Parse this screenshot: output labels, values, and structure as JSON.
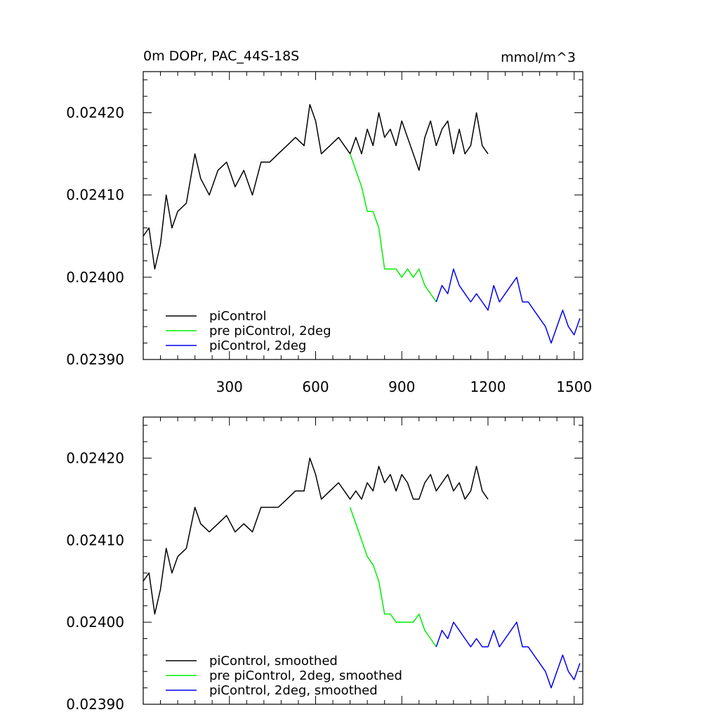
{
  "chart_data": [
    {
      "type": "line",
      "title": "0m DOPr, PAC_44S-18S",
      "units": "mmol/m^3",
      "xlim": [
        0,
        1530
      ],
      "ylim": [
        0.0239,
        0.02425
      ],
      "x_ticks": [
        300,
        600,
        900,
        1200,
        1500
      ],
      "y_ticks": [
        0.0239,
        0.024,
        0.0241,
        0.0242
      ],
      "y_tick_labels": [
        "0.02390",
        "0.02400",
        "0.02410",
        "0.02420"
      ],
      "legend": "bottom-left",
      "series": [
        {
          "name": "piControl",
          "color": "#000000",
          "x": [
            0,
            20,
            40,
            60,
            80,
            100,
            120,
            150,
            180,
            200,
            230,
            260,
            290,
            320,
            350,
            380,
            410,
            440,
            470,
            500,
            530,
            560,
            580,
            600,
            620,
            650,
            680,
            700,
            720,
            740,
            760,
            780,
            800,
            820,
            840,
            860,
            880,
            900,
            920,
            940,
            960,
            980,
            1000,
            1020,
            1040,
            1060,
            1080,
            1100,
            1120,
            1140,
            1160,
            1180,
            1200
          ],
          "y": [
            0.02405,
            0.02406,
            0.02401,
            0.02404,
            0.0241,
            0.02406,
            0.02408,
            0.02409,
            0.02415,
            0.02412,
            0.0241,
            0.02413,
            0.02414,
            0.02411,
            0.02413,
            0.0241,
            0.02414,
            0.02414,
            0.02415,
            0.02416,
            0.02417,
            0.02416,
            0.02421,
            0.02419,
            0.02415,
            0.02416,
            0.02417,
            0.02416,
            0.02415,
            0.02417,
            0.02415,
            0.02418,
            0.02416,
            0.0242,
            0.02417,
            0.02418,
            0.02416,
            0.02419,
            0.02417,
            0.02415,
            0.02413,
            0.02417,
            0.02419,
            0.02416,
            0.02418,
            0.02419,
            0.02415,
            0.02418,
            0.02415,
            0.02416,
            0.0242,
            0.02416,
            0.02415
          ]
        },
        {
          "name": "pre piControl, 2deg",
          "color": "#00ee00",
          "x": [
            720,
            740,
            760,
            780,
            800,
            820,
            840,
            860,
            880,
            900,
            920,
            940,
            960,
            980,
            1000,
            1020
          ],
          "y": [
            0.02415,
            0.02413,
            0.02411,
            0.02408,
            0.02408,
            0.02406,
            0.02401,
            0.02401,
            0.02401,
            0.024,
            0.02401,
            0.024,
            0.02401,
            0.02399,
            0.02398,
            0.02397
          ]
        },
        {
          "name": "piControl, 2deg",
          "color": "#0000ee",
          "x": [
            1020,
            1040,
            1060,
            1080,
            1100,
            1120,
            1140,
            1160,
            1180,
            1200,
            1220,
            1240,
            1260,
            1280,
            1300,
            1320,
            1340,
            1360,
            1380,
            1400,
            1420,
            1440,
            1460,
            1480,
            1500,
            1520
          ],
          "y": [
            0.02397,
            0.02399,
            0.02398,
            0.02401,
            0.02399,
            0.02398,
            0.02397,
            0.02398,
            0.02397,
            0.02396,
            0.02399,
            0.02397,
            0.02398,
            0.02399,
            0.024,
            0.02397,
            0.02397,
            0.02396,
            0.02395,
            0.02394,
            0.02392,
            0.02394,
            0.02396,
            0.02394,
            0.02393,
            0.02395
          ]
        }
      ]
    },
    {
      "type": "line",
      "title": "",
      "units": "",
      "xlim": [
        0,
        1530
      ],
      "ylim": [
        0.0239,
        0.02425
      ],
      "x_ticks": [
        300,
        600,
        900,
        1200,
        1500
      ],
      "y_ticks": [
        0.0239,
        0.024,
        0.0241,
        0.0242
      ],
      "y_tick_labels": [
        "0.02390",
        "0.02400",
        "0.02410",
        "0.02420"
      ],
      "legend": "bottom-left",
      "series": [
        {
          "name": "piControl, smoothed",
          "color": "#000000",
          "x": [
            0,
            20,
            40,
            60,
            80,
            100,
            120,
            150,
            180,
            200,
            230,
            260,
            290,
            320,
            350,
            380,
            410,
            440,
            470,
            500,
            530,
            560,
            580,
            600,
            620,
            650,
            680,
            700,
            720,
            740,
            760,
            780,
            800,
            820,
            840,
            860,
            880,
            900,
            920,
            940,
            960,
            980,
            1000,
            1020,
            1040,
            1060,
            1080,
            1100,
            1120,
            1140,
            1160,
            1180,
            1200
          ],
          "y": [
            0.02405,
            0.02406,
            0.02401,
            0.02404,
            0.02409,
            0.02406,
            0.02408,
            0.02409,
            0.02414,
            0.02412,
            0.02411,
            0.02412,
            0.02413,
            0.02411,
            0.02412,
            0.02411,
            0.02414,
            0.02414,
            0.02414,
            0.02415,
            0.02416,
            0.02416,
            0.0242,
            0.02418,
            0.02415,
            0.02416,
            0.02417,
            0.02416,
            0.02415,
            0.02416,
            0.02415,
            0.02417,
            0.02416,
            0.02419,
            0.02417,
            0.02418,
            0.02416,
            0.02418,
            0.02417,
            0.02415,
            0.02415,
            0.02417,
            0.02418,
            0.02416,
            0.02417,
            0.02418,
            0.02416,
            0.02417,
            0.02415,
            0.02416,
            0.02419,
            0.02416,
            0.02415
          ]
        },
        {
          "name": "pre piControl, 2deg, smoothed",
          "color": "#00ee00",
          "x": [
            720,
            740,
            760,
            780,
            800,
            820,
            840,
            860,
            880,
            900,
            920,
            940,
            960,
            980,
            1000,
            1020
          ],
          "y": [
            0.02414,
            0.02412,
            0.0241,
            0.02408,
            0.02407,
            0.02405,
            0.02401,
            0.02401,
            0.024,
            0.024,
            0.024,
            0.024,
            0.02401,
            0.02399,
            0.02398,
            0.02397
          ]
        },
        {
          "name": "piControl, 2deg, smoothed",
          "color": "#0000ee",
          "x": [
            1020,
            1040,
            1060,
            1080,
            1100,
            1120,
            1140,
            1160,
            1180,
            1200,
            1220,
            1240,
            1260,
            1280,
            1300,
            1320,
            1340,
            1360,
            1380,
            1400,
            1420,
            1440,
            1460,
            1480,
            1500,
            1520
          ],
          "y": [
            0.02397,
            0.02399,
            0.02398,
            0.024,
            0.02399,
            0.02398,
            0.02397,
            0.02398,
            0.02397,
            0.02397,
            0.02399,
            0.02397,
            0.02398,
            0.02399,
            0.024,
            0.02397,
            0.02397,
            0.02396,
            0.02395,
            0.02394,
            0.02392,
            0.02394,
            0.02396,
            0.02394,
            0.02393,
            0.02395
          ]
        }
      ]
    }
  ]
}
